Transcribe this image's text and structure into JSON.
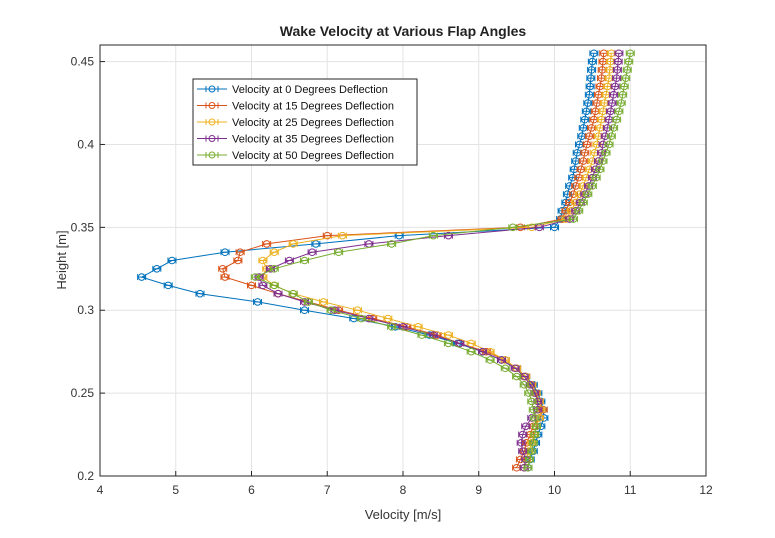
{
  "chart_data": {
    "type": "line",
    "title": "Wake Velocity at Various Flap Angles",
    "xlabel": "Velocity [m/s]",
    "ylabel": "Height [m]",
    "xlim": [
      4,
      12
    ],
    "ylim": [
      0.2,
      0.46
    ],
    "xticks": [
      "4",
      "5",
      "6",
      "7",
      "8",
      "9",
      "10",
      "11",
      "12"
    ],
    "yticks": [
      "0.2",
      "0.25",
      "0.3",
      "0.35",
      "0.4",
      "0.45"
    ],
    "grid": true,
    "legend_position": "top-left",
    "y": [
      0.205,
      0.21,
      0.215,
      0.22,
      0.225,
      0.23,
      0.235,
      0.24,
      0.245,
      0.25,
      0.255,
      0.26,
      0.265,
      0.27,
      0.275,
      0.28,
      0.285,
      0.29,
      0.295,
      0.3,
      0.305,
      0.31,
      0.315,
      0.32,
      0.325,
      0.33,
      0.335,
      0.34,
      0.345,
      0.35,
      0.355,
      0.36,
      0.365,
      0.37,
      0.375,
      0.38,
      0.385,
      0.39,
      0.395,
      0.4,
      0.405,
      0.41,
      0.415,
      0.42,
      0.425,
      0.43,
      0.435,
      0.44,
      0.445,
      0.45,
      0.455
    ],
    "series": [
      {
        "name": "Velocity at 0 Degrees Deflection",
        "color": "#0072BD",
        "values": [
          9.65,
          9.68,
          9.72,
          9.75,
          9.78,
          9.82,
          9.86,
          9.85,
          9.82,
          9.78,
          9.72,
          9.62,
          9.5,
          9.3,
          9.05,
          8.72,
          8.35,
          7.9,
          7.35,
          6.7,
          6.08,
          5.32,
          4.9,
          4.55,
          4.75,
          4.95,
          5.65,
          6.85,
          7.95,
          10.0,
          10.08,
          10.1,
          10.15,
          10.17,
          10.2,
          10.24,
          10.26,
          10.28,
          10.3,
          10.33,
          10.36,
          10.38,
          10.4,
          10.42,
          10.44,
          10.46,
          10.47,
          10.48,
          10.49,
          10.5,
          10.52
        ]
      },
      {
        "name": "Velocity at 15 Degrees Deflection",
        "color": "#D95319",
        "values": [
          9.5,
          9.55,
          9.6,
          9.63,
          9.68,
          9.72,
          9.8,
          9.85,
          9.8,
          9.75,
          9.7,
          9.62,
          9.5,
          9.35,
          9.1,
          8.75,
          8.45,
          8.05,
          7.6,
          7.15,
          6.75,
          6.35,
          6.0,
          5.65,
          5.62,
          5.82,
          5.85,
          6.2,
          7.0,
          9.55,
          10.1,
          10.15,
          10.2,
          10.25,
          10.28,
          10.32,
          10.35,
          10.38,
          10.4,
          10.43,
          10.46,
          10.49,
          10.52,
          10.54,
          10.56,
          10.58,
          10.6,
          10.62,
          10.63,
          10.64,
          10.65
        ]
      },
      {
        "name": "Velocity at 25 Degrees Deflection",
        "color": "#EDB120",
        "values": [
          9.6,
          9.63,
          9.66,
          9.7,
          9.73,
          9.76,
          9.8,
          9.82,
          9.8,
          9.76,
          9.7,
          9.62,
          9.5,
          9.35,
          9.15,
          8.9,
          8.6,
          8.2,
          7.8,
          7.4,
          6.95,
          6.55,
          6.3,
          6.15,
          6.2,
          6.15,
          6.3,
          6.55,
          7.2,
          9.7,
          10.15,
          10.22,
          10.28,
          10.33,
          10.38,
          10.42,
          10.46,
          10.5,
          10.53,
          10.56,
          10.58,
          10.6,
          10.62,
          10.64,
          10.66,
          10.68,
          10.7,
          10.72,
          10.73,
          10.74,
          10.75
        ]
      },
      {
        "name": "Velocity at 35 Degrees Deflection",
        "color": "#7E2F8E",
        "values": [
          9.6,
          9.62,
          9.58,
          9.56,
          9.58,
          9.62,
          9.7,
          9.78,
          9.78,
          9.74,
          9.68,
          9.6,
          9.48,
          9.3,
          9.05,
          8.75,
          8.4,
          8.0,
          7.55,
          7.1,
          6.7,
          6.35,
          6.15,
          6.1,
          6.25,
          6.5,
          6.8,
          7.55,
          8.6,
          9.8,
          10.2,
          10.28,
          10.34,
          10.4,
          10.45,
          10.5,
          10.54,
          10.58,
          10.62,
          10.64,
          10.67,
          10.7,
          10.72,
          10.74,
          10.76,
          10.78,
          10.8,
          10.82,
          10.83,
          10.84,
          10.85
        ]
      },
      {
        "name": "Velocity at 50 Degrees Deflection",
        "color": "#77AC30",
        "values": [
          9.65,
          9.67,
          9.7,
          9.72,
          9.74,
          9.76,
          9.74,
          9.72,
          9.7,
          9.66,
          9.6,
          9.5,
          9.35,
          9.15,
          8.9,
          8.6,
          8.25,
          7.85,
          7.45,
          7.05,
          6.75,
          6.55,
          6.3,
          6.05,
          6.3,
          6.7,
          7.15,
          7.85,
          8.4,
          9.45,
          10.25,
          10.32,
          10.38,
          10.44,
          10.5,
          10.55,
          10.6,
          10.64,
          10.68,
          10.72,
          10.75,
          10.78,
          10.82,
          10.85,
          10.88,
          10.9,
          10.92,
          10.94,
          10.96,
          10.98,
          11.0
        ]
      }
    ]
  }
}
